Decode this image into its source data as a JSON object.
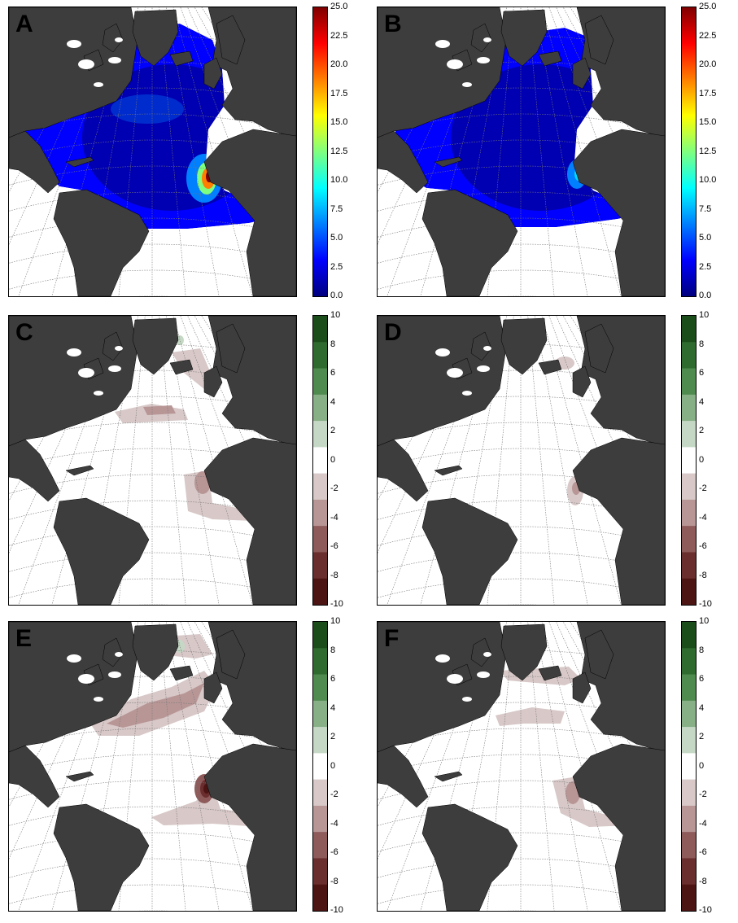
{
  "panels": [
    {
      "id": "A",
      "label": "A",
      "type": "continuous",
      "colorbar_ticks": [
        "25.0",
        "22.5",
        "20.0",
        "17.5",
        "15.0",
        "12.5",
        "10.0",
        "7.5",
        "5.0",
        "2.5",
        "0.0"
      ]
    },
    {
      "id": "B",
      "label": "B",
      "type": "continuous",
      "colorbar_ticks": [
        "25.0",
        "22.5",
        "20.0",
        "17.5",
        "15.0",
        "12.5",
        "10.0",
        "7.5",
        "5.0",
        "2.5",
        "0.0"
      ]
    },
    {
      "id": "C",
      "label": "C",
      "type": "diverging",
      "colorbar_ticks": [
        "10",
        "8",
        "6",
        "4",
        "2",
        "0",
        "-2",
        "-4",
        "-6",
        "-8",
        "-10"
      ]
    },
    {
      "id": "D",
      "label": "D",
      "type": "diverging",
      "colorbar_ticks": [
        "10",
        "8",
        "6",
        "4",
        "2",
        "0",
        "-2",
        "-4",
        "-6",
        "-8",
        "-10"
      ]
    },
    {
      "id": "E",
      "label": "E",
      "type": "diverging",
      "colorbar_ticks": [
        "10",
        "8",
        "6",
        "4",
        "2",
        "0",
        "-2",
        "-4",
        "-6",
        "-8",
        "-10"
      ]
    },
    {
      "id": "F",
      "label": "F",
      "type": "diverging",
      "colorbar_ticks": [
        "10",
        "8",
        "6",
        "4",
        "2",
        "0",
        "-2",
        "-4",
        "-6",
        "-8",
        "-10"
      ]
    }
  ],
  "colors": {
    "land": "#3d3d3d",
    "ocean_empty": "#ffffff",
    "grid": "#777777",
    "jet": [
      "#00007f",
      "#0000ff",
      "#007fff",
      "#00ffff",
      "#7fff7f",
      "#ffff00",
      "#ff7f00",
      "#ff0000",
      "#7f0000"
    ],
    "diverging": [
      "#1b4d1b",
      "#2f6b2f",
      "#4f8a4f",
      "#87b087",
      "#c5d8c5",
      "#ffffff",
      "#d8c8c8",
      "#b89696",
      "#8e5a5a",
      "#6a2e2e",
      "#4d1414"
    ]
  }
}
